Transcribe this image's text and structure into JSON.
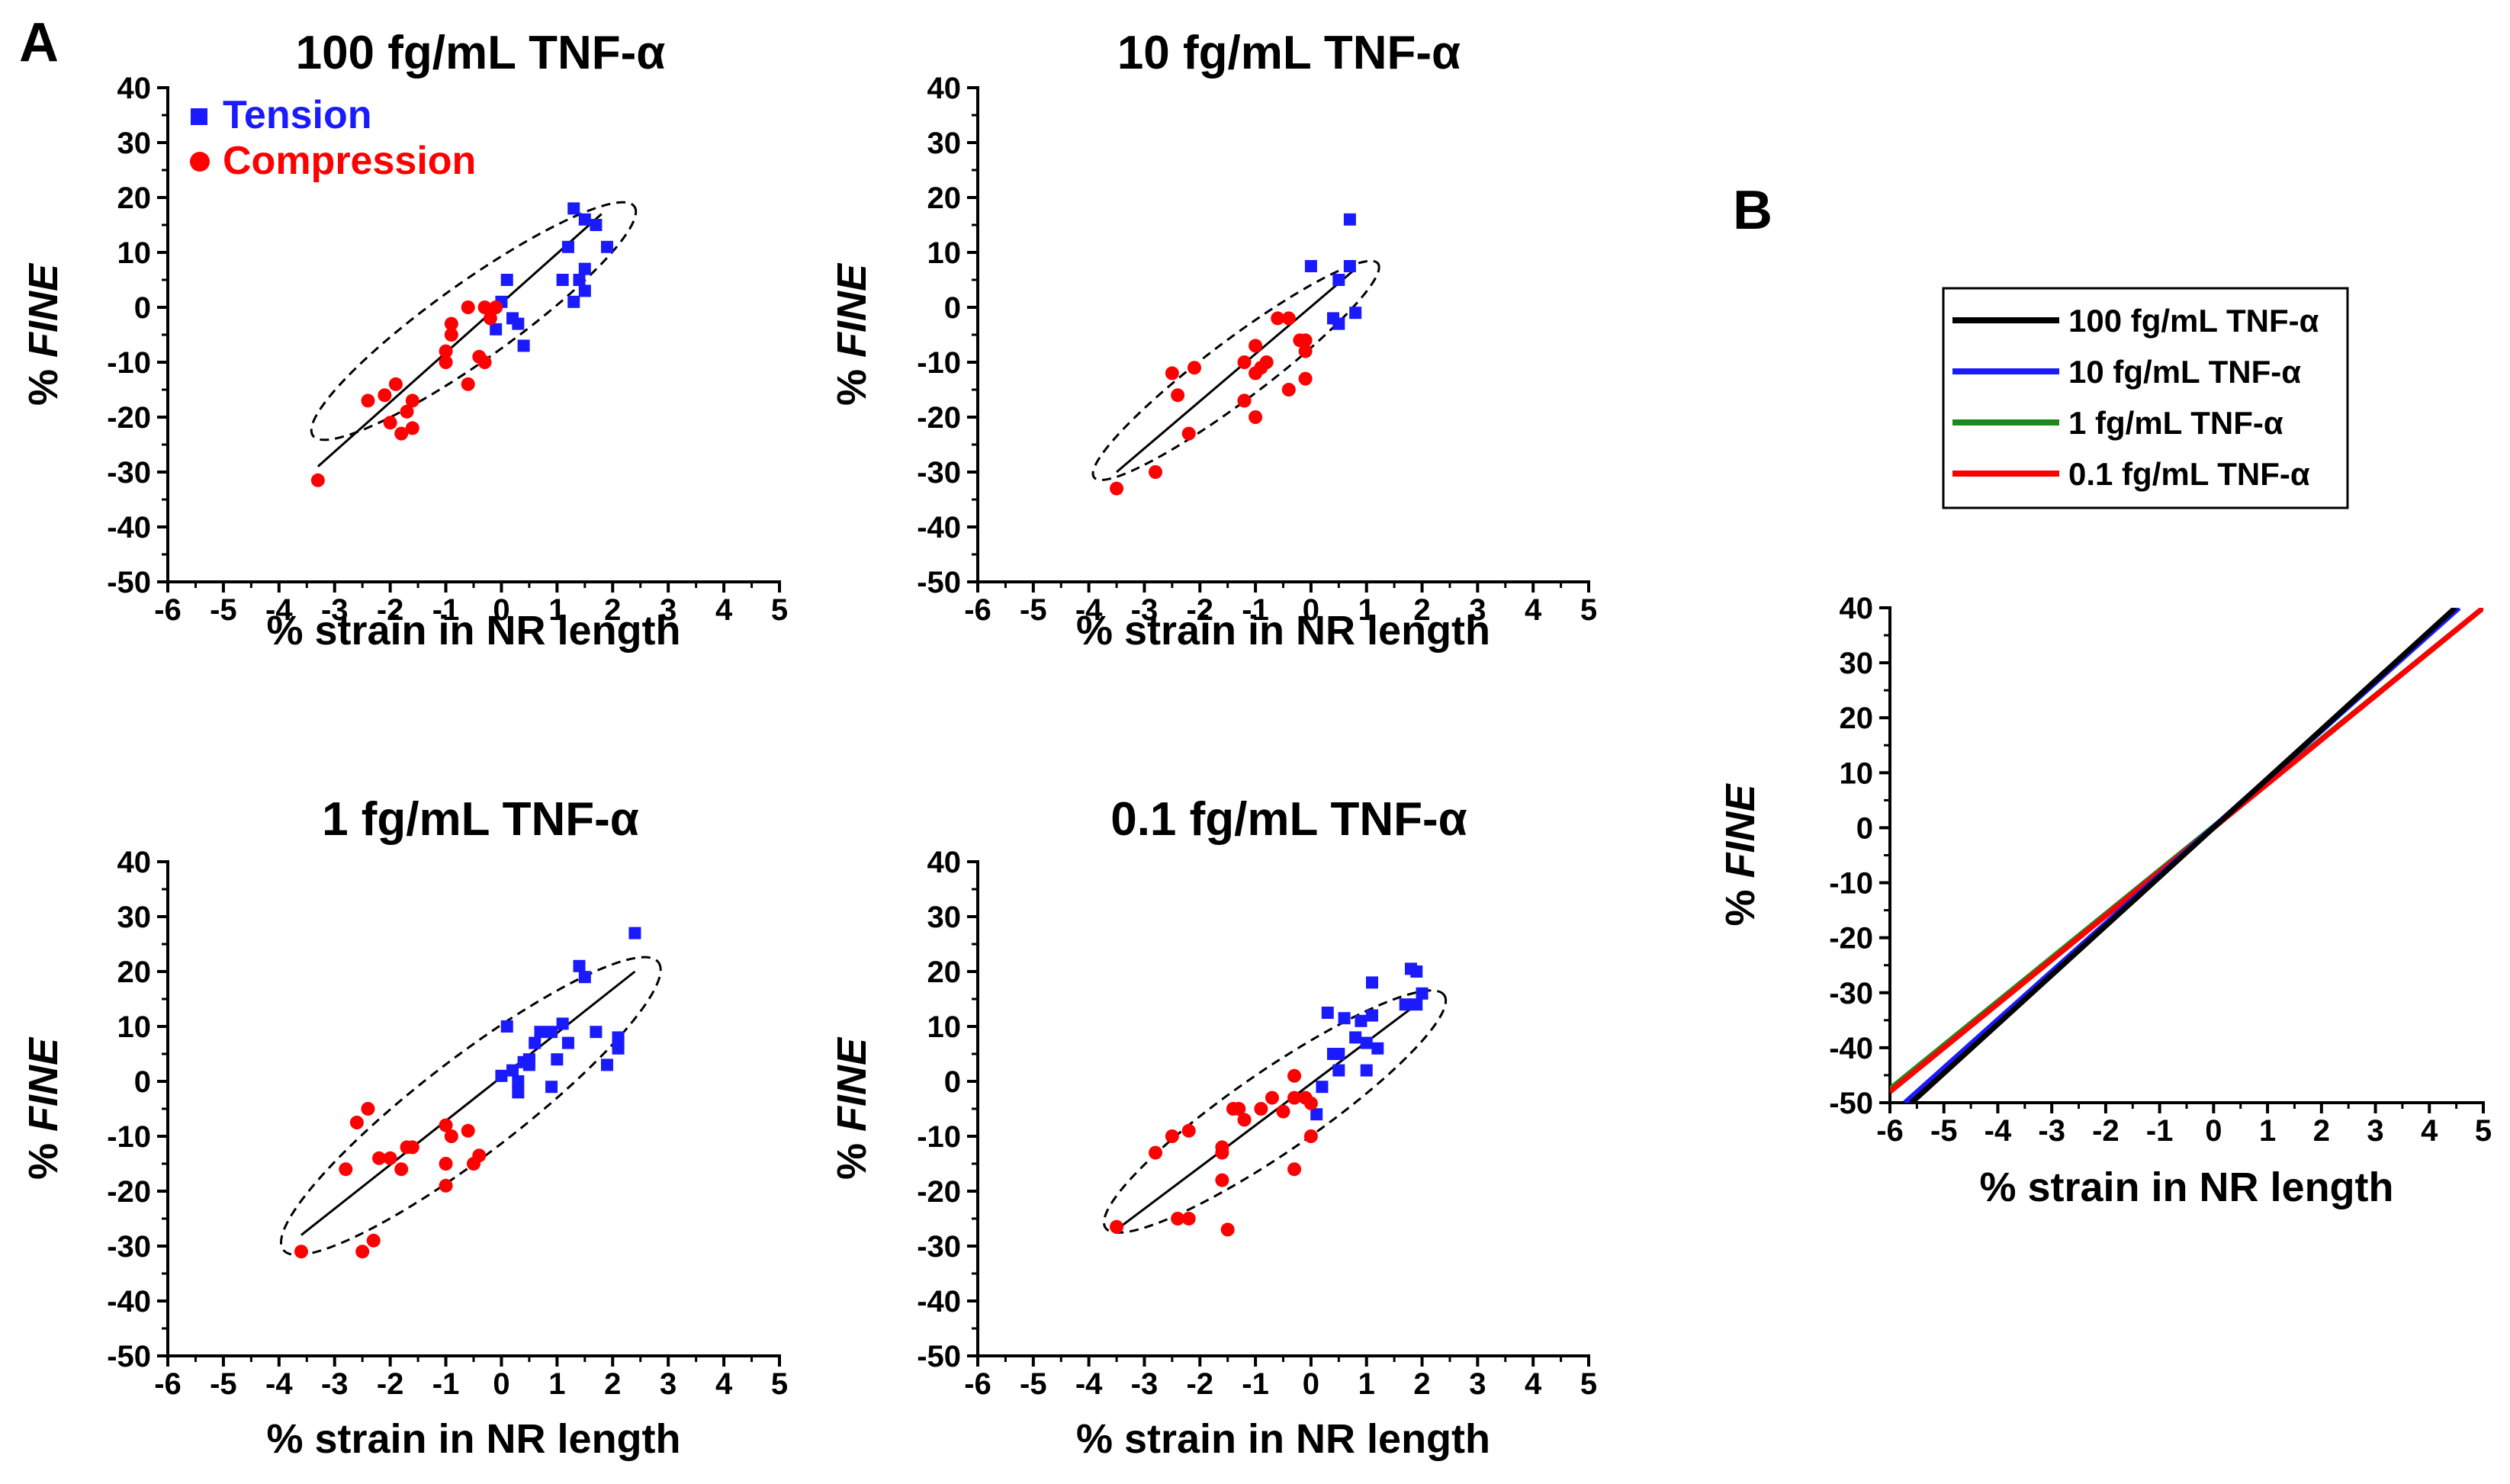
{
  "panel_a_label": "A",
  "panel_b_label": "B",
  "chart_data": [
    {
      "type": "scatter",
      "title": "100 fg/mL TNF-α",
      "xlabel": "% strain in NR length",
      "ylabel_prefix": "% ",
      "ylabel_italic": "FINE",
      "xlim": [
        -6,
        5
      ],
      "ylim": [
        -50,
        40
      ],
      "xticks": [
        "-6",
        "-5",
        "-4",
        "-3",
        "-2",
        "-1",
        "0",
        "1",
        "2",
        "3",
        "4",
        "5"
      ],
      "yticks": [
        "-50",
        "-40",
        "-30",
        "-20",
        "-10",
        "0",
        "10",
        "20",
        "30",
        "40"
      ],
      "legend": {
        "position": "top-left",
        "entries": [
          {
            "name": "Tension",
            "color": "#1a1aff",
            "marker": "square"
          },
          {
            "name": "Compression",
            "color": "#ff0000",
            "marker": "circle"
          }
        ]
      },
      "series": [
        {
          "name": "Tension",
          "color": "#1a1aff",
          "marker": "square",
          "x": [
            1.3,
            1.5,
            1.7,
            1.9,
            1.2,
            1.5,
            1.1,
            1.3,
            1.5,
            1.4,
            0.1,
            0.0,
            0.3,
            0.4,
            -0.1,
            0.2
          ],
          "y": [
            18,
            16,
            15,
            11,
            11,
            7,
            5,
            1,
            3,
            5,
            5,
            1,
            -3,
            -7,
            -4,
            -2
          ]
        },
        {
          "name": "Compression",
          "color": "#ff0000",
          "marker": "circle",
          "x": [
            -3.3,
            -2.4,
            -2.1,
            -1.9,
            -2.0,
            -1.8,
            -1.6,
            -1.7,
            -1.6,
            -1.0,
            -0.9,
            -0.9,
            -1.0,
            -0.6,
            -0.6,
            -0.4,
            -0.3,
            -0.3,
            -0.2,
            -0.1
          ],
          "y": [
            -31.5,
            -17,
            -16,
            -14,
            -21,
            -23,
            -17,
            -19,
            -22,
            -8,
            -3,
            -5,
            -10,
            -14,
            0,
            -9,
            -10,
            0,
            -2,
            0
          ]
        }
      ],
      "fit_line": {
        "x": [
          -3.3,
          1.8
        ],
        "y": [
          -29,
          17
        ]
      },
      "ellipse": {
        "center": [
          -0.5,
          -2.5
        ],
        "semi_axes_data": [
          3.55,
          35
        ],
        "tilt_deg": -35.5
      }
    },
    {
      "type": "scatter",
      "title": "10 fg/mL TNF-α",
      "xlabel": "% strain in NR length",
      "ylabel_prefix": "% ",
      "ylabel_italic": "FINE",
      "xlim": [
        -6,
        5
      ],
      "ylim": [
        -50,
        40
      ],
      "xticks": [
        "-6",
        "-5",
        "-4",
        "-3",
        "-2",
        "-1",
        "0",
        "1",
        "2",
        "3",
        "4",
        "5"
      ],
      "yticks": [
        "-50",
        "-40",
        "-30",
        "-20",
        "-10",
        "0",
        "10",
        "20",
        "30",
        "40"
      ],
      "series": [
        {
          "name": "Tension",
          "color": "#1a1aff",
          "marker": "square",
          "x": [
            0.7,
            0.0,
            0.7,
            0.5,
            0.8,
            0.4,
            0.5
          ],
          "y": [
            16,
            7.5,
            7.5,
            5,
            -1,
            -2,
            -3
          ]
        },
        {
          "name": "Compression",
          "color": "#ff0000",
          "marker": "circle",
          "x": [
            -3.5,
            -2.8,
            -2.5,
            -2.4,
            -2.2,
            -2.1,
            -1.2,
            -1.0,
            -1.2,
            -1.0,
            -1.0,
            -0.8,
            -0.6,
            -0.4,
            -0.1,
            -0.1,
            -0.1,
            -0.4,
            -1.2,
            -0.9,
            -0.2
          ],
          "y": [
            -33,
            -30,
            -12,
            -16,
            -23,
            -11,
            -10,
            -7,
            -17,
            -12,
            -20,
            -10,
            -2,
            -2,
            -6,
            -8,
            -13,
            -15,
            -17,
            -11,
            -6
          ]
        }
      ],
      "fit_line": {
        "x": [
          -3.5,
          0.8
        ],
        "y": [
          -30,
          7
        ]
      },
      "ellipse": {
        "center": [
          -1.35,
          -11.5
        ],
        "semi_axes_data": [
          3.2,
          27
        ],
        "tilt_deg": -37
      }
    },
    {
      "type": "scatter",
      "title": "1 fg/mL TNF-α",
      "xlabel": "% strain in NR length",
      "ylabel_prefix": "% ",
      "ylabel_italic": "FINE",
      "xlim": [
        -6,
        5
      ],
      "ylim": [
        -50,
        40
      ],
      "xticks": [
        "-6",
        "-5",
        "-4",
        "-3",
        "-2",
        "-1",
        "0",
        "1",
        "2",
        "3",
        "4",
        "5"
      ],
      "yticks": [
        "-50",
        "-40",
        "-30",
        "-20",
        "-10",
        "0",
        "10",
        "20",
        "30",
        "40"
      ],
      "series": [
        {
          "name": "Tension",
          "color": "#1a1aff",
          "marker": "square",
          "x": [
            2.4,
            1.4,
            1.5,
            0.1,
            1.1,
            1.2,
            0.7,
            0.6,
            0.5,
            0.4,
            0.3,
            0.0,
            0.2,
            1.0,
            1.7,
            2.1,
            2.1,
            1.9,
            2.1,
            0.9,
            0.3,
            0.5,
            0.9
          ],
          "y": [
            27,
            21,
            19,
            10,
            10.5,
            7,
            9,
            7,
            4,
            3.5,
            0,
            1,
            2,
            4,
            9,
            8,
            6,
            3,
            7,
            -1,
            -2,
            3,
            9
          ]
        },
        {
          "name": "Compression",
          "color": "#ff0000",
          "marker": "circle",
          "x": [
            -3.6,
            -2.6,
            -2.4,
            -2.8,
            -2.2,
            -2.0,
            -1.8,
            -1.7,
            -1.6,
            -1.0,
            -0.9,
            -0.6,
            -0.5,
            -0.4,
            -1.0,
            -2.5,
            -2.3,
            -1.0
          ],
          "y": [
            -31,
            -7.5,
            -5,
            -16,
            -14,
            -14,
            -16,
            -12,
            -12,
            -8,
            -10,
            -9,
            -15,
            -13.5,
            -19,
            -31,
            -29,
            -15
          ]
        }
      ],
      "fit_line": {
        "x": [
          -3.6,
          2.4
        ],
        "y": [
          -28,
          20
        ]
      },
      "ellipse": {
        "center": [
          -0.55,
          -4.5
        ],
        "semi_axes_data": [
          4.25,
          44
        ],
        "tilt_deg": -37.5
      }
    },
    {
      "type": "scatter",
      "title": "0.1 fg/mL TNF-α",
      "xlabel": "% strain in NR length",
      "ylabel_prefix": "% ",
      "ylabel_italic": "FINE",
      "xlim": [
        -6,
        5
      ],
      "ylim": [
        -50,
        40
      ],
      "xticks": [
        "-6",
        "-5",
        "-4",
        "-3",
        "-2",
        "-1",
        "0",
        "1",
        "2",
        "3",
        "4",
        "5"
      ],
      "yticks": [
        "-50",
        "-40",
        "-30",
        "-20",
        "-10",
        "0",
        "10",
        "20",
        "30",
        "40"
      ],
      "series": [
        {
          "name": "Tension",
          "color": "#1a1aff",
          "marker": "square",
          "x": [
            1.8,
            1.9,
            2.0,
            1.7,
            1.9,
            1.1,
            1.1,
            0.9,
            0.6,
            0.3,
            0.5,
            1.2,
            1.0,
            0.8,
            0.4,
            0.5,
            0.2,
            1.0,
            0.1
          ],
          "y": [
            20.5,
            20,
            16,
            14,
            14,
            18,
            12,
            11,
            11.5,
            12.5,
            5,
            6,
            7,
            8,
            5,
            2,
            -1,
            2,
            -6
          ]
        },
        {
          "name": "Compression",
          "color": "#ff0000",
          "marker": "circle",
          "x": [
            -3.5,
            -2.8,
            -2.5,
            -2.2,
            -1.6,
            -1.4,
            -1.3,
            -1.2,
            -0.9,
            -0.7,
            -0.5,
            -0.3,
            -0.1,
            0.0,
            0.0,
            -0.3,
            -0.3,
            -1.6,
            -1.6,
            -2.4,
            -2.2,
            -1.5
          ],
          "y": [
            -26.5,
            -13,
            -10,
            -9,
            -12,
            -5,
            -5,
            -7,
            -5,
            -3,
            -5.5,
            1,
            -3,
            -4,
            -10,
            -3,
            -16,
            -13,
            -18,
            -25,
            -25,
            -27
          ]
        }
      ],
      "fit_line": {
        "x": [
          -3.5,
          1.9
        ],
        "y": [
          -27,
          14
        ]
      },
      "ellipse": {
        "center": [
          -0.65,
          -5.5
        ],
        "semi_axes_data": [
          3.7,
          37
        ],
        "tilt_deg": -34.5
      }
    },
    {
      "type": "line",
      "title": "",
      "xlabel": "% strain in NR length",
      "ylabel_prefix": "% ",
      "ylabel_italic": "FINE",
      "xlim": [
        -6,
        5
      ],
      "ylim": [
        -50,
        40
      ],
      "xticks": [
        "-6",
        "-5",
        "-4",
        "-3",
        "-2",
        "-1",
        "0",
        "1",
        "2",
        "3",
        "4",
        "5"
      ],
      "yticks": [
        "-50",
        "-40",
        "-30",
        "-20",
        "-10",
        "0",
        "10",
        "20",
        "30",
        "40"
      ],
      "legend": {
        "position": "top",
        "entries": [
          {
            "name": "100 fg/mL TNF-α",
            "color": "#000000"
          },
          {
            "name": "10 fg/mL TNF-α",
            "color": "#1a1aff"
          },
          {
            "name": "1 fg/mL TNF-α",
            "color": "#1e8a1e"
          },
          {
            "name": "0.1 fg/mL TNF-α",
            "color": "#ff0000"
          }
        ]
      },
      "series": [
        {
          "name": "1 fg/mL TNF-α",
          "color": "#1e8a1e",
          "x": [
            -6,
            5
          ],
          "y": [
            -47.5,
            40
          ]
        },
        {
          "name": "0.1 fg/mL TNF-α",
          "color": "#ff0000",
          "x": [
            -6,
            5
          ],
          "y": [
            -48,
            40
          ]
        },
        {
          "name": "10 fg/mL TNF-α",
          "color": "#1a1aff",
          "x": [
            -5.72,
            4.55
          ],
          "y": [
            -50,
            40
          ]
        },
        {
          "name": "100 fg/mL TNF-α",
          "color": "#000000",
          "x": [
            -5.6,
            4.48
          ],
          "y": [
            -50,
            40
          ]
        }
      ]
    }
  ]
}
